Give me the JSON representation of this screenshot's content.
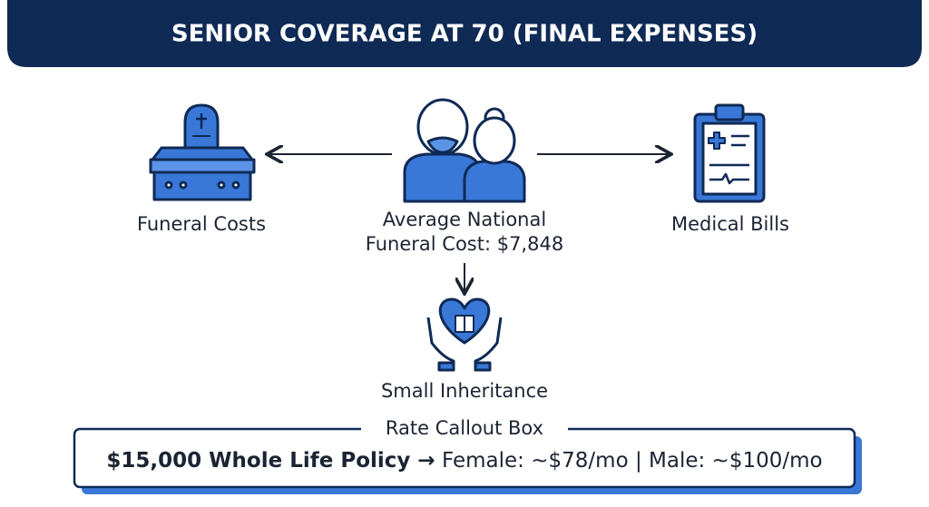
{
  "header": {
    "title": "SENIOR COVERAGE AT 70 (FINAL EXPENSES)"
  },
  "nodes": [
    {
      "label": "Funeral Costs"
    },
    {
      "label_lines": [
        "Average National",
        "Funeral Cost: $7,848"
      ]
    },
    {
      "label": "Medical Bills"
    },
    {
      "label": "Small Inheritance"
    }
  ],
  "callout": {
    "label": "Rate Callout Box",
    "text_bold": "$15,000 Whole Life Policy →",
    "text": "Female: ~$78/mo | Male: ~$100/mo"
  }
}
